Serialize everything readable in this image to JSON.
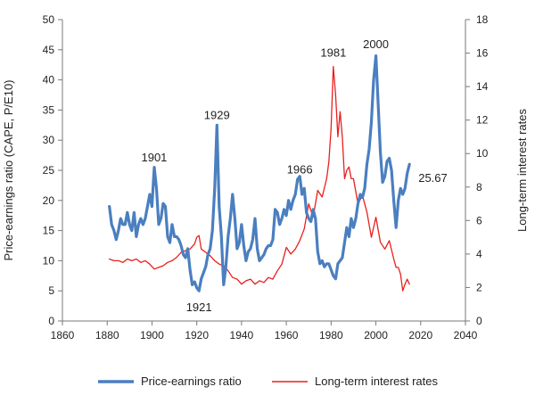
{
  "chart_data": {
    "type": "line",
    "title": "",
    "ylabel_left": "Price-earnings ratio (CAPE, P/E10)",
    "ylabel_right": "Long-term interest rates",
    "xlim": [
      1860,
      2040
    ],
    "ylim_left": [
      0,
      50
    ],
    "ylim_right": [
      0,
      18
    ],
    "x_ticks": [
      "1860",
      "1880",
      "1900",
      "1920",
      "1940",
      "1960",
      "1980",
      "2000",
      "2020",
      "2040"
    ],
    "y_ticks_left": [
      "0",
      "5",
      "10",
      "15",
      "20",
      "25",
      "30",
      "35",
      "40",
      "45",
      "50"
    ],
    "y_ticks_right": [
      "0",
      "2",
      "4",
      "6",
      "8",
      "10",
      "12",
      "14",
      "16",
      "18"
    ],
    "grid": false,
    "legend_position": "bottom",
    "colors": {
      "pe": "#4a7fc0",
      "rates": "#e8201e"
    },
    "series": [
      {
        "name": "Price-earnings ratio",
        "axis": "left",
        "color": "#4a7fc0",
        "x": [
          1881,
          1882,
          1883,
          1884,
          1885,
          1886,
          1887,
          1888,
          1889,
          1890,
          1891,
          1892,
          1893,
          1894,
          1895,
          1896,
          1897,
          1898,
          1899,
          1900,
          1901,
          1902,
          1903,
          1904,
          1905,
          1906,
          1907,
          1908,
          1909,
          1910,
          1911,
          1912,
          1913,
          1914,
          1915,
          1916,
          1917,
          1918,
          1919,
          1920,
          1921,
          1922,
          1923,
          1924,
          1925,
          1926,
          1927,
          1928,
          1929,
          1930,
          1931,
          1932,
          1933,
          1934,
          1935,
          1936,
          1937,
          1938,
          1939,
          1940,
          1941,
          1942,
          1943,
          1944,
          1945,
          1946,
          1947,
          1948,
          1949,
          1950,
          1951,
          1952,
          1953,
          1954,
          1955,
          1956,
          1957,
          1958,
          1959,
          1960,
          1961,
          1962,
          1963,
          1964,
          1965,
          1966,
          1967,
          1968,
          1969,
          1970,
          1971,
          1972,
          1973,
          1974,
          1975,
          1976,
          1977,
          1978,
          1979,
          1980,
          1981,
          1982,
          1983,
          1984,
          1985,
          1986,
          1987,
          1988,
          1989,
          1990,
          1991,
          1992,
          1993,
          1994,
          1995,
          1996,
          1997,
          1998,
          1999,
          2000,
          2001,
          2002,
          2003,
          2004,
          2005,
          2006,
          2007,
          2008,
          2009,
          2010,
          2011,
          2012,
          2013,
          2014,
          2015
        ],
        "y": [
          19,
          16,
          15,
          13.5,
          15,
          17,
          16,
          16,
          18,
          16,
          15,
          18,
          14,
          16,
          17,
          16,
          17,
          19,
          21,
          19,
          25.5,
          22,
          16,
          17,
          19.5,
          19,
          14,
          13,
          16,
          14,
          14,
          13.5,
          12.5,
          11,
          10.5,
          12,
          8.5,
          6,
          6.5,
          5.5,
          5,
          7,
          8,
          9,
          11,
          12,
          15,
          22,
          32.5,
          19,
          14,
          6,
          9,
          14,
          17,
          21,
          17,
          12,
          13,
          16,
          12.5,
          10,
          11.5,
          12,
          13.5,
          17,
          12,
          10,
          10.5,
          11,
          12,
          12.5,
          12.5,
          13.5,
          18.5,
          18,
          16,
          17,
          18.5,
          17.5,
          20,
          18.5,
          20,
          21,
          23.5,
          24,
          21,
          22,
          18,
          17,
          16.5,
          18.5,
          17,
          11.5,
          9.5,
          10,
          9,
          9.5,
          9.5,
          8.5,
          7.5,
          7,
          9.5,
          10,
          10.5,
          13,
          15.5,
          14,
          17,
          15.5,
          17,
          19.5,
          21,
          20.5,
          22,
          26,
          28.5,
          33,
          40,
          44,
          36,
          28,
          23,
          24,
          26.5,
          27,
          25,
          20,
          15.5,
          20,
          22,
          21,
          22,
          24.5,
          26
        ],
        "end_label": "25.67"
      },
      {
        "name": "Long-term interest rates",
        "axis": "right",
        "color": "#e8201e",
        "x": [
          1881,
          1883,
          1885,
          1887,
          1889,
          1891,
          1893,
          1895,
          1897,
          1899,
          1901,
          1903,
          1905,
          1907,
          1909,
          1911,
          1913,
          1915,
          1917,
          1919,
          1920,
          1921,
          1922,
          1924,
          1926,
          1928,
          1930,
          1932,
          1934,
          1936,
          1938,
          1940,
          1942,
          1944,
          1946,
          1948,
          1950,
          1952,
          1954,
          1956,
          1958,
          1960,
          1962,
          1964,
          1966,
          1968,
          1970,
          1972,
          1974,
          1976,
          1978,
          1979,
          1980,
          1981,
          1982,
          1983,
          1984,
          1985,
          1986,
          1987,
          1988,
          1989,
          1990,
          1992,
          1994,
          1996,
          1998,
          2000,
          2002,
          2004,
          2006,
          2008,
          2009,
          2010,
          2011,
          2012,
          2013,
          2014,
          2015
        ],
        "y": [
          3.7,
          3.6,
          3.6,
          3.5,
          3.7,
          3.6,
          3.7,
          3.5,
          3.6,
          3.4,
          3.1,
          3.2,
          3.3,
          3.5,
          3.6,
          3.8,
          4.1,
          4.2,
          4.3,
          4.6,
          5.0,
          5.1,
          4.3,
          4.1,
          3.9,
          3.6,
          3.4,
          3.3,
          3.0,
          2.6,
          2.5,
          2.2,
          2.4,
          2.5,
          2.2,
          2.4,
          2.3,
          2.6,
          2.5,
          3.0,
          3.4,
          4.4,
          4.0,
          4.3,
          4.8,
          5.5,
          7.0,
          6.2,
          7.8,
          7.4,
          8.5,
          9.5,
          11.5,
          15.2,
          13.5,
          11.0,
          12.5,
          11.0,
          8.5,
          9.0,
          9.2,
          8.5,
          8.5,
          7.0,
          7.5,
          6.5,
          5.0,
          6.2,
          4.7,
          4.3,
          4.8,
          3.7,
          3.2,
          3.2,
          2.8,
          1.8,
          2.2,
          2.5,
          2.2
        ]
      }
    ],
    "annotations": [
      {
        "text": "1901",
        "x": 1901,
        "y": 26.5,
        "axis": "left"
      },
      {
        "text": "1929",
        "x": 1929,
        "y": 33.5,
        "axis": "left"
      },
      {
        "text": "1921",
        "x": 1921,
        "y": 1.6,
        "axis": "left"
      },
      {
        "text": "1966",
        "x": 1966,
        "y": 24.5,
        "axis": "left"
      },
      {
        "text": "1981",
        "x": 1981,
        "y": 15.8,
        "axis": "right"
      },
      {
        "text": "2000",
        "x": 2000,
        "y": 16.3,
        "axis": "right"
      }
    ]
  }
}
